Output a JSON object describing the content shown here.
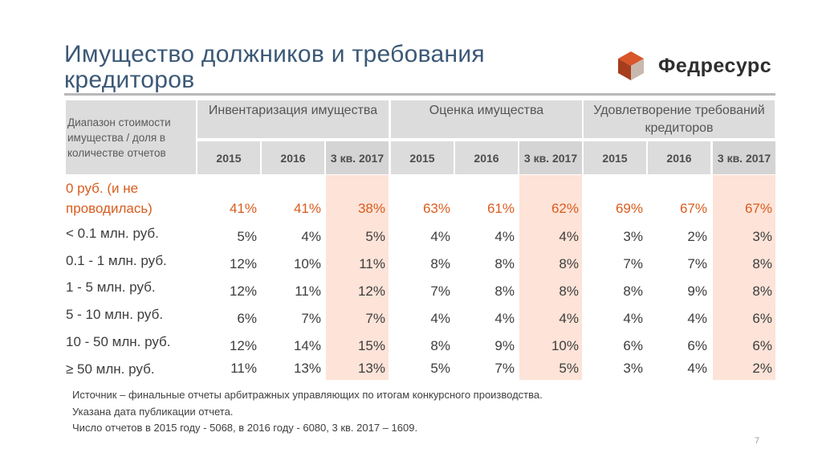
{
  "title": "Имущество должников и требования кредиторов",
  "logo": {
    "name": "Федресурс",
    "colors": [
      "#d9552a",
      "#a63d1c",
      "#c9b8ae"
    ]
  },
  "table": {
    "range_header": "Диапазон стоимости имущества / доля в количестве отчетов",
    "groups": [
      "Инвентаризация имущества",
      "Оценка имущества",
      "Удовлетворение требований кредиторов"
    ],
    "years": [
      "2015",
      "2016",
      "3 кв. 2017",
      "2015",
      "2016",
      "3 кв. 2017",
      "2015",
      "2016",
      "3 кв. 2017"
    ],
    "rows": [
      {
        "label": "0 руб. (и не проводилась)",
        "values": [
          "41%",
          "41%",
          "38%",
          "63%",
          "61%",
          "62%",
          "69%",
          "67%",
          "67%"
        ]
      },
      {
        "label": "< 0.1 млн. руб.",
        "values": [
          "5%",
          "4%",
          "5%",
          "4%",
          "4%",
          "4%",
          "3%",
          "2%",
          "3%"
        ]
      },
      {
        "label": "0.1 - 1 млн. руб.",
        "values": [
          "12%",
          "10%",
          "11%",
          "8%",
          "8%",
          "8%",
          "7%",
          "7%",
          "8%"
        ]
      },
      {
        "label": "1 - 5 млн. руб.",
        "values": [
          "12%",
          "11%",
          "12%",
          "7%",
          "8%",
          "8%",
          "8%",
          "9%",
          "8%"
        ]
      },
      {
        "label": "5 - 10 млн. руб.",
        "values": [
          "6%",
          "7%",
          "7%",
          "4%",
          "4%",
          "4%",
          "4%",
          "4%",
          "6%"
        ]
      },
      {
        "label": "10 - 50 млн. руб.",
        "values": [
          "12%",
          "14%",
          "15%",
          "8%",
          "9%",
          "10%",
          "6%",
          "6%",
          "6%"
        ]
      },
      {
        "label": "≥ 50 млн. руб.",
        "values": [
          "11%",
          "13%",
          "13%",
          "5%",
          "7%",
          "5%",
          "3%",
          "4%",
          "2%"
        ]
      }
    ]
  },
  "notes": [
    "Источник – финальные отчеты арбитражных управляющих по итогам конкурсного производства.",
    "Указана дата публикации отчета.",
    "Число отчетов в 2015 году - 5068, в 2016 году - 6080, 3 кв. 2017 – 1609."
  ],
  "page_number": "7"
}
